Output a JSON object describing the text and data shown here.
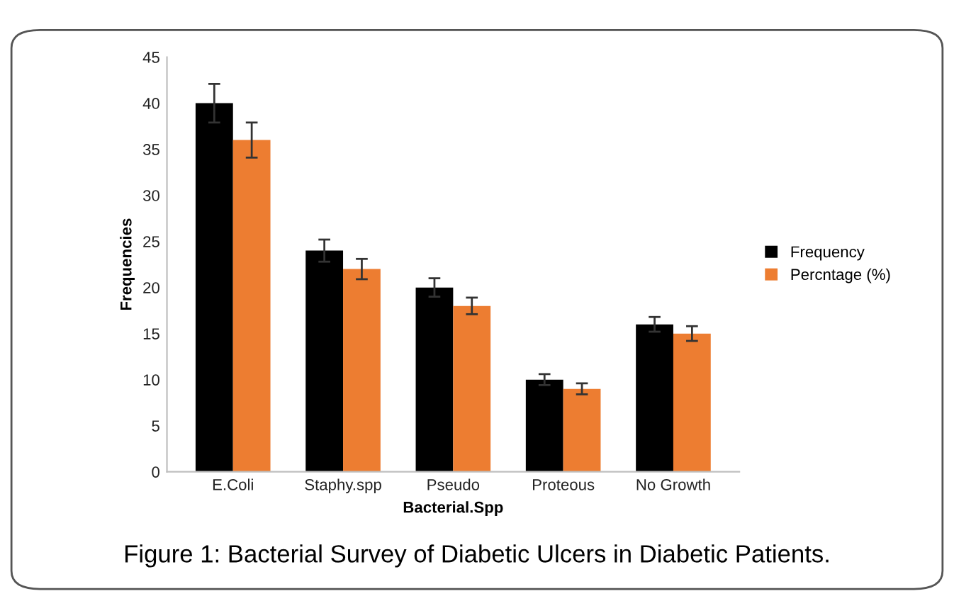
{
  "chart_data": {
    "type": "bar",
    "xlabel": "Bacterial.Spp",
    "ylabel": "Frequencies",
    "categories": [
      "E.Coli",
      "Staphy.spp",
      "Pseudo",
      "Proteous",
      "No Growth"
    ],
    "series": [
      {
        "name": "Frequency",
        "color": "#000000",
        "values": [
          40,
          24,
          20,
          10,
          16
        ],
        "errors": [
          2.1,
          1.2,
          1.0,
          0.6,
          0.8
        ]
      },
      {
        "name": "Percntage (%)",
        "color": "#ed7d31",
        "values": [
          36,
          22,
          18,
          9,
          15
        ],
        "errors": [
          1.9,
          1.1,
          0.9,
          0.6,
          0.8
        ]
      }
    ],
    "ylim": [
      0,
      45
    ],
    "yticks": [
      0,
      5,
      10,
      15,
      20,
      25,
      30,
      35,
      40,
      45
    ],
    "grid": false,
    "legend": "right",
    "annotations": [
      "Figure 1: Bacterial Survey of Diabetic Ulcers in Diabetic Patients."
    ]
  }
}
